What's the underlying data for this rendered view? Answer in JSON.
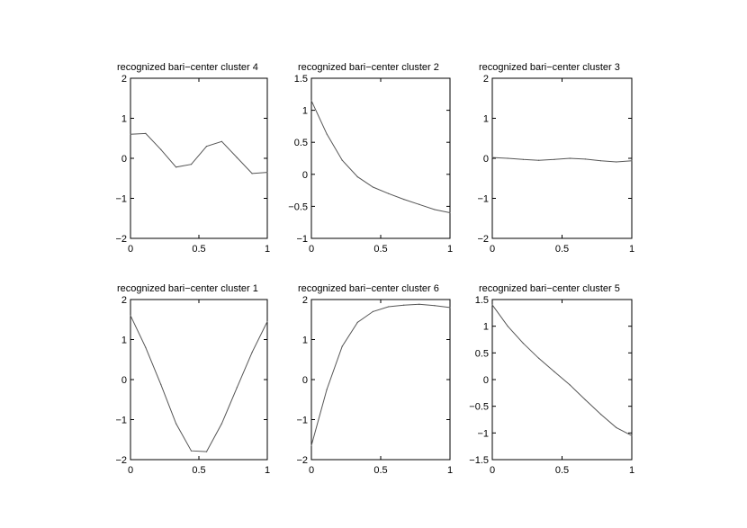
{
  "chart_data": [
    {
      "type": "line",
      "title": "recognized bari−center cluster 4",
      "xlim": [
        0,
        1
      ],
      "ylim": [
        -2,
        2
      ],
      "xticks": [
        0,
        0.5,
        1
      ],
      "xtick_labels": [
        "0",
        "0.5",
        "1"
      ],
      "yticks": [
        -2,
        -1,
        0,
        1,
        2
      ],
      "ytick_labels": [
        "−2",
        "−1",
        "0",
        "1",
        "2"
      ],
      "x": [
        0,
        0.111,
        0.222,
        0.333,
        0.444,
        0.556,
        0.667,
        0.778,
        0.889,
        1
      ],
      "y": [
        0.6,
        0.62,
        0.22,
        -0.22,
        -0.15,
        0.3,
        0.42,
        0.02,
        -0.38,
        -0.35
      ]
    },
    {
      "type": "line",
      "title": "recognized bari−center cluster 2",
      "xlim": [
        0,
        1
      ],
      "ylim": [
        -1,
        1.5
      ],
      "xticks": [
        0,
        0.5,
        1
      ],
      "xtick_labels": [
        "0",
        "0.5",
        "1"
      ],
      "yticks": [
        -1,
        -0.5,
        0,
        0.5,
        1,
        1.5
      ],
      "ytick_labels": [
        "−1",
        "−0.5",
        "0",
        "0.5",
        "1",
        "1.5"
      ],
      "x": [
        0,
        0.111,
        0.222,
        0.333,
        0.444,
        0.556,
        0.667,
        0.778,
        0.889,
        1
      ],
      "y": [
        1.15,
        0.63,
        0.22,
        -0.04,
        -0.2,
        -0.3,
        -0.39,
        -0.47,
        -0.55,
        -0.6
      ]
    },
    {
      "type": "line",
      "title": "recognized bari−center cluster 3",
      "xlim": [
        0,
        1
      ],
      "ylim": [
        -2,
        2
      ],
      "xticks": [
        0,
        0.5,
        1
      ],
      "xtick_labels": [
        "0",
        "0.5",
        "1"
      ],
      "yticks": [
        -2,
        -1,
        0,
        1,
        2
      ],
      "ytick_labels": [
        "−2",
        "−1",
        "0",
        "1",
        "2"
      ],
      "x": [
        0,
        0.111,
        0.222,
        0.333,
        0.444,
        0.556,
        0.667,
        0.778,
        0.889,
        1
      ],
      "y": [
        0.02,
        0.0,
        -0.03,
        -0.05,
        -0.03,
        0.0,
        -0.02,
        -0.06,
        -0.09,
        -0.06
      ]
    },
    {
      "type": "line",
      "title": "recognized bari−center cluster 1",
      "xlim": [
        0,
        1
      ],
      "ylim": [
        -2,
        2
      ],
      "xticks": [
        0,
        0.5,
        1
      ],
      "xtick_labels": [
        "0",
        "0.5",
        "1"
      ],
      "yticks": [
        -2,
        -1,
        0,
        1,
        2
      ],
      "ytick_labels": [
        "−2",
        "−1",
        "0",
        "1",
        "2"
      ],
      "x": [
        0,
        0.111,
        0.222,
        0.333,
        0.444,
        0.556,
        0.667,
        0.778,
        0.889,
        1
      ],
      "y": [
        1.6,
        0.8,
        -0.12,
        -1.1,
        -1.78,
        -1.8,
        -1.1,
        -0.2,
        0.68,
        1.45
      ]
    },
    {
      "type": "line",
      "title": "recognized bari−center cluster 6",
      "xlim": [
        0,
        1
      ],
      "ylim": [
        -2,
        2
      ],
      "xticks": [
        0,
        0.5,
        1
      ],
      "xtick_labels": [
        "0",
        "0.5",
        "1"
      ],
      "yticks": [
        -2,
        -1,
        0,
        1,
        2
      ],
      "ytick_labels": [
        "−2",
        "−1",
        "0",
        "1",
        "2"
      ],
      "x": [
        0,
        0.111,
        0.222,
        0.333,
        0.444,
        0.556,
        0.667,
        0.778,
        0.889,
        1
      ],
      "y": [
        -1.65,
        -0.25,
        0.83,
        1.43,
        1.7,
        1.82,
        1.86,
        1.88,
        1.85,
        1.8
      ]
    },
    {
      "type": "line",
      "title": "recognized bari−center cluster 5",
      "xlim": [
        0,
        1
      ],
      "ylim": [
        -1.5,
        1.5
      ],
      "xticks": [
        0,
        0.5,
        1
      ],
      "xtick_labels": [
        "0",
        "0.5",
        "1"
      ],
      "yticks": [
        -1.5,
        -1,
        -0.5,
        0,
        0.5,
        1,
        1.5
      ],
      "ytick_labels": [
        "−1.5",
        "−1",
        "−0.5",
        "0",
        "0.5",
        "1",
        "1.5"
      ],
      "x": [
        0,
        0.111,
        0.222,
        0.333,
        0.444,
        0.556,
        0.667,
        0.778,
        0.889,
        1
      ],
      "y": [
        1.4,
        1.0,
        0.68,
        0.4,
        0.15,
        -0.1,
        -0.38,
        -0.65,
        -0.9,
        -1.05
      ]
    }
  ]
}
